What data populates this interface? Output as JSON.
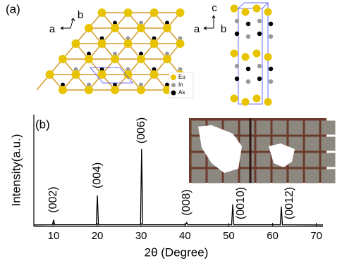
{
  "structure": {
    "panel_label": "(a)",
    "axis_a_left": "a",
    "axis_b_left": "b",
    "axis_c_right": "c",
    "axis_a_right": "a",
    "axis_b_right": "b",
    "legend": [
      "Eu",
      "In",
      "As"
    ]
  },
  "chart_data": {
    "type": "line",
    "panel_label": "(b)",
    "x_label": "2θ (Degree)",
    "y_label": "Intensity(a.u.)",
    "x": [
      5.5,
      9.75,
      10.0,
      10.25,
      19.75,
      20.0,
      20.25,
      29.85,
      30.1,
      30.35,
      40.15,
      40.4,
      40.65,
      50.65,
      50.9,
      51.15,
      61.75,
      62.0,
      62.25,
      71.5
    ],
    "series": [
      {
        "color": "#000000",
        "values": [
          0.3,
          0.5,
          5,
          0.5,
          0.5,
          27,
          0.5,
          0.5,
          69,
          0.5,
          0.5,
          2.5,
          0.5,
          0.5,
          19,
          0.5,
          0.5,
          17,
          0.5,
          0.3
        ]
      }
    ],
    "xlim": [
      5.5,
      71.5
    ],
    "ylim": [
      -1,
      100
    ],
    "xticks": [
      10,
      20,
      30,
      40,
      50,
      60,
      70
    ],
    "annotations": [
      {
        "text": "(002)",
        "x": 10.0
      },
      {
        "text": "(004)",
        "x": 20.0
      },
      {
        "text": "(006)",
        "x": 30.1
      },
      {
        "text": "(008)",
        "x": 40.4
      },
      {
        "text": "(0010)",
        "x": 50.9
      },
      {
        "text": "(0012)",
        "x": 62.0
      }
    ]
  }
}
